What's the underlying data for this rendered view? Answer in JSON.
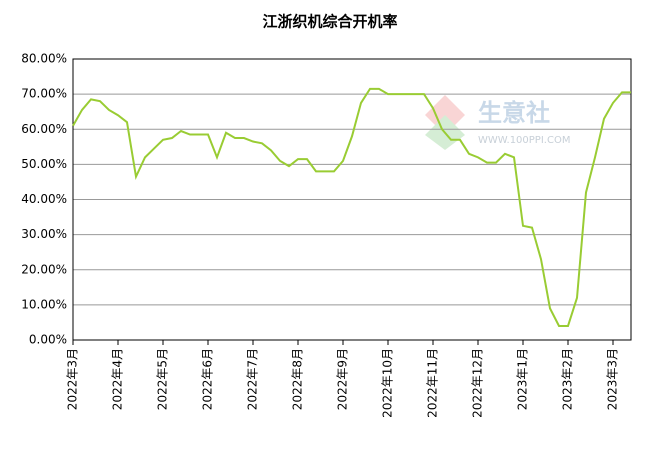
{
  "chart_data": {
    "type": "line",
    "title": "江浙织机综合开机率",
    "categories": [
      "2022年3月",
      null,
      null,
      null,
      null,
      "2022年4月",
      null,
      null,
      null,
      null,
      "2022年5月",
      null,
      null,
      null,
      null,
      "2022年6月",
      null,
      null,
      null,
      null,
      "2022年7月",
      null,
      null,
      null,
      null,
      "2022年8月",
      null,
      null,
      null,
      null,
      "2022年9月",
      null,
      null,
      null,
      null,
      "2022年10月",
      null,
      null,
      null,
      null,
      "2022年11月",
      null,
      null,
      null,
      null,
      "2022年12月",
      null,
      null,
      null,
      null,
      "2023年1月",
      null,
      null,
      null,
      null,
      "2023年2月",
      null,
      null,
      null,
      null,
      "2023年3月",
      null,
      null
    ],
    "series": [
      {
        "color": "#99cc33",
        "values": [
          61,
          65.5,
          68.5,
          68,
          65.5,
          64,
          62,
          46.5,
          52,
          54.5,
          57,
          57.5,
          59.5,
          58.5,
          58.5,
          58.5,
          52,
          59,
          57.5,
          57.5,
          56.5,
          56,
          54,
          51,
          49.5,
          51.5,
          51.5,
          48,
          48,
          48,
          51,
          58,
          67.5,
          71.5,
          71.5,
          70,
          70,
          70,
          70,
          70,
          66,
          60,
          57,
          57,
          53,
          52,
          50.5,
          50.5,
          53,
          52,
          32.5,
          32,
          23,
          9,
          4,
          4,
          12,
          42,
          52,
          63,
          67.5,
          70.5,
          70.5
        ]
      }
    ],
    "ylim": [
      0,
      80
    ],
    "yticks": [
      {
        "value": 0,
        "label": "0.00%"
      },
      {
        "value": 10,
        "label": "10.00%"
      },
      {
        "value": 20,
        "label": "20.00%"
      },
      {
        "value": 30,
        "label": "30.00%"
      },
      {
        "value": 40,
        "label": "40.00%"
      },
      {
        "value": 50,
        "label": "50.00%"
      },
      {
        "value": 60,
        "label": "60.00%"
      },
      {
        "value": 70,
        "label": "70.00%"
      },
      {
        "value": 80,
        "label": "80.00%"
      }
    ],
    "grid": true,
    "annotations": [
      "生意社",
      "WWW.100PPI.COM"
    ]
  }
}
